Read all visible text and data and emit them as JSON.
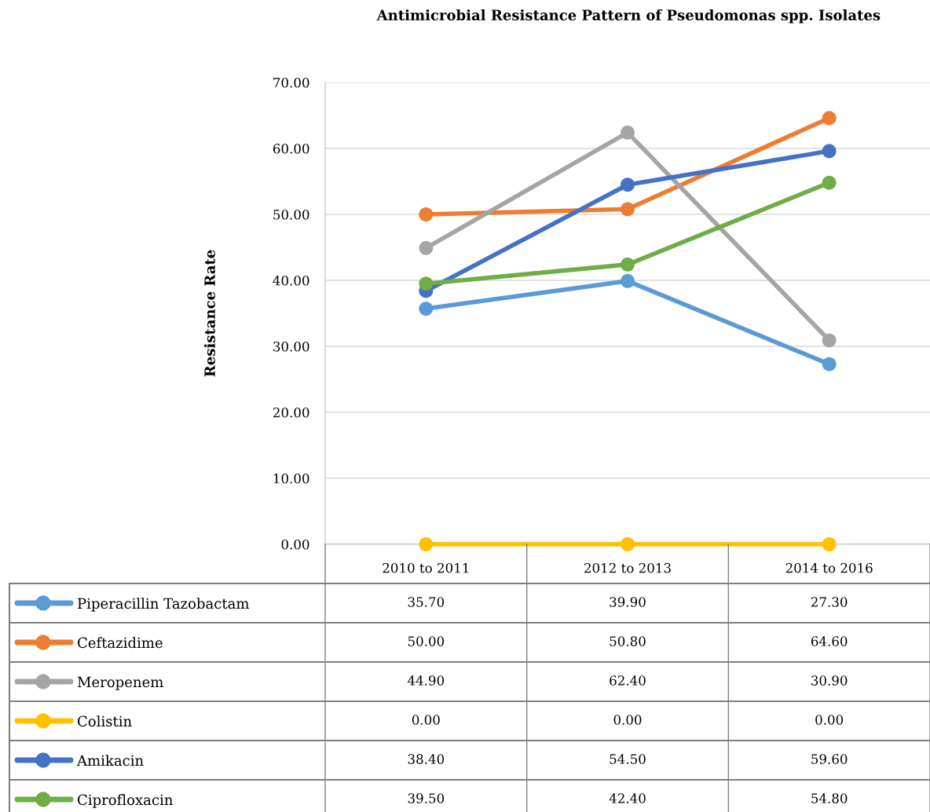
{
  "chart_data": {
    "type": "line",
    "title": "Antimicrobial Resistance Pattern of Pseudomonas spp. Isolates",
    "ylabel": "Resistance Rate",
    "categories": [
      "2010 to 2011",
      "2012 to 2013",
      "2014 to 2016"
    ],
    "ylim": [
      0,
      70
    ],
    "yticks": [
      {
        "value": 0,
        "label": "0.00"
      },
      {
        "value": 10,
        "label": "10.00"
      },
      {
        "value": 20,
        "label": "20.00"
      },
      {
        "value": 30,
        "label": "30.00"
      },
      {
        "value": 40,
        "label": "40.00"
      },
      {
        "value": 50,
        "label": "50.00"
      },
      {
        "value": 60,
        "label": "60.00"
      },
      {
        "value": 70,
        "label": "70.00"
      }
    ],
    "grid": "y",
    "legend": "bottom",
    "marker": "circle",
    "line_style": "solid",
    "series": [
      {
        "name": "Piperacillin Tazobactam",
        "color": "#5b9bd5",
        "values": [
          35.7,
          39.9,
          27.3
        ],
        "value_labels": [
          "35.70",
          "39.90",
          "27.30"
        ]
      },
      {
        "name": "Ceftazidime",
        "color": "#ed7d31",
        "values": [
          50.0,
          50.8,
          64.6
        ],
        "value_labels": [
          "50.00",
          "50.80",
          "64.60"
        ]
      },
      {
        "name": "Meropenem",
        "color": "#a5a5a5",
        "values": [
          44.9,
          62.4,
          30.9
        ],
        "value_labels": [
          "44.90",
          "62.40",
          "30.90"
        ]
      },
      {
        "name": "Colistin",
        "color": "#ffc000",
        "values": [
          0.0,
          0.0,
          0.0
        ],
        "value_labels": [
          "0.00",
          "0.00",
          "0.00"
        ]
      },
      {
        "name": "Amikacin",
        "color": "#4472c4",
        "values": [
          38.4,
          54.5,
          59.6
        ],
        "value_labels": [
          "38.40",
          "54.50",
          "59.60"
        ]
      },
      {
        "name": "Ciprofloxacin",
        "color": "#70ad47",
        "values": [
          39.5,
          42.4,
          54.8
        ],
        "value_labels": [
          "39.50",
          "42.40",
          "54.80"
        ]
      }
    ]
  }
}
